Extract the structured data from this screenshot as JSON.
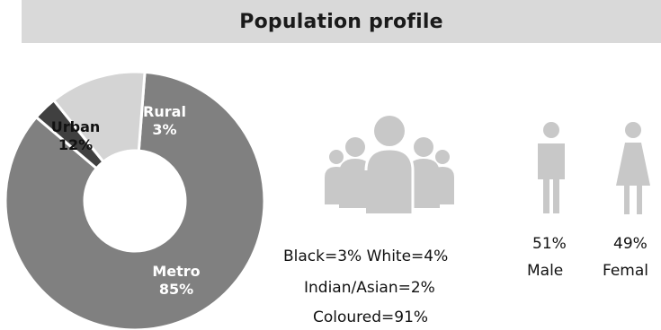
{
  "header": {
    "title": "Population profile"
  },
  "chart_data": {
    "type": "pie",
    "style": "donut",
    "segments": [
      {
        "label": "Metro",
        "percent_text": "85%",
        "value": 85,
        "color": "#808080",
        "label_color": "#ffffff"
      },
      {
        "label": "Rural",
        "percent_text": "3%",
        "value": 3,
        "color": "#404040",
        "label_color": "#ffffff"
      },
      {
        "label": "Urban",
        "percent_text": "12%",
        "value": 12,
        "color": "#d4d4d4",
        "label_color": "#111111"
      }
    ]
  },
  "race": {
    "line1": "Black=3%  White=4%",
    "line2": "Indian/Asian=2%",
    "line3": "Coloured=91%"
  },
  "gender": {
    "male_pct": "51%",
    "male_label": "Male",
    "female_pct": "49%",
    "female_label": "Femal"
  },
  "icons": {
    "population": "people-group-icon",
    "male": "male-person-icon",
    "female": "female-person-icon"
  },
  "colors": {
    "title_bar": "#d9d9d9",
    "icon": "#c8c8c8"
  }
}
